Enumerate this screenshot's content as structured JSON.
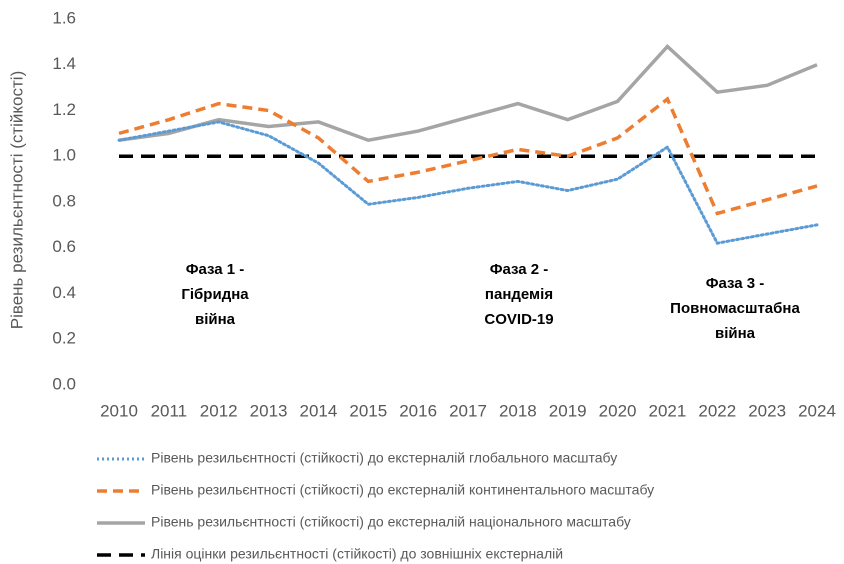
{
  "chart_data": {
    "type": "line",
    "ylabel": "Рівень резильєнтності (стійкості)",
    "categories": [
      "2010",
      "2011",
      "2012",
      "2013",
      "2014",
      "2015",
      "2016",
      "2017",
      "2018",
      "2019",
      "2020",
      "2021",
      "2022",
      "2023",
      "2024"
    ],
    "ylim": [
      0,
      1.6
    ],
    "yticks": [
      {
        "value": 0,
        "label": "0.0"
      },
      0.2,
      0.4,
      0.6,
      0.8,
      {
        "value": 1,
        "label": "1.0"
      },
      1.2,
      1.4,
      1.6
    ],
    "series": [
      {
        "name": "Рівень резильєнтності (стійкості) до екстерналій глобального масштабу",
        "color": "#5b9bd5",
        "dash": "dotted",
        "values": [
          1.07,
          1.11,
          1.15,
          1.09,
          0.97,
          0.79,
          0.82,
          0.86,
          0.89,
          0.85,
          0.9,
          1.04,
          0.62,
          0.66,
          0.7
        ]
      },
      {
        "name": "Рівень резильєнтності (стійкості) до екстерналій континентального масштабу",
        "color": "#ed7d31",
        "dash": "dashed",
        "values": [
          1.1,
          1.16,
          1.23,
          1.2,
          1.08,
          0.89,
          0.93,
          0.98,
          1.03,
          1.0,
          1.08,
          1.25,
          0.75,
          0.81,
          0.87
        ]
      },
      {
        "name": "Рівень резильєнтності (стійкості) до екстерналій національного масштабу",
        "color": "#a5a5a5",
        "dash": "solid",
        "values": [
          1.07,
          1.1,
          1.16,
          1.13,
          1.15,
          1.07,
          1.11,
          1.17,
          1.23,
          1.16,
          1.24,
          1.48,
          1.28,
          1.31,
          1.4
        ]
      },
      {
        "name": "Лінія оцінки резильєнтності (стійкості) до зовнішніх екстерналій",
        "color": "#000000",
        "dash": "longdash",
        "values": [
          1,
          1,
          1,
          1,
          1,
          1,
          1,
          1,
          1,
          1,
          1,
          1,
          1,
          1,
          1
        ]
      }
    ],
    "annotations": [
      {
        "lines": [
          "Фаза 1 -",
          "Гібридна",
          "війна"
        ]
      },
      {
        "lines": [
          "Фаза 2 -",
          "пандемія",
          "COVID-19"
        ]
      },
      {
        "lines": [
          "Фаза 3 -",
          "Повномасштабна",
          "війна"
        ]
      }
    ]
  }
}
